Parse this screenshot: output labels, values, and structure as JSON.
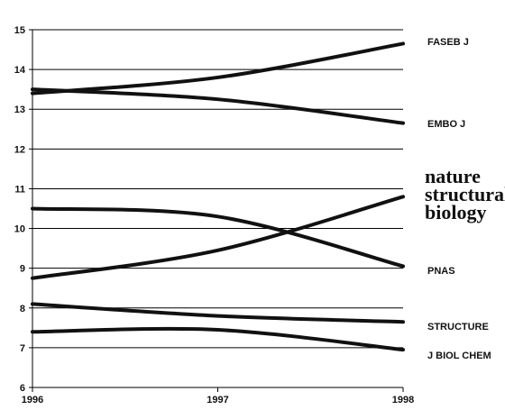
{
  "chart_data": {
    "type": "line",
    "x": [
      1996,
      1997,
      1998
    ],
    "x_tick_labels": [
      "1996",
      "1997",
      "1998"
    ],
    "ylim": [
      6,
      15
    ],
    "y_ticks": [
      6,
      7,
      8,
      9,
      10,
      11,
      12,
      13,
      14,
      15
    ],
    "grid": true,
    "series": [
      {
        "name": "FASEB J",
        "values": [
          13.4,
          13.8,
          14.65
        ]
      },
      {
        "name": "EMBO J",
        "values": [
          13.5,
          13.25,
          12.65
        ]
      },
      {
        "name": "nature structural biology",
        "values": [
          8.75,
          9.45,
          10.8
        ]
      },
      {
        "name": "PNAS",
        "values": [
          10.5,
          10.3,
          9.05
        ]
      },
      {
        "name": "STRUCTURE",
        "values": [
          8.1,
          7.8,
          7.65
        ]
      },
      {
        "name": "J BIOL CHEM",
        "values": [
          7.4,
          7.45,
          6.95
        ]
      }
    ],
    "nsb_logo_lines": [
      "nature",
      "structural",
      "biology"
    ]
  }
}
